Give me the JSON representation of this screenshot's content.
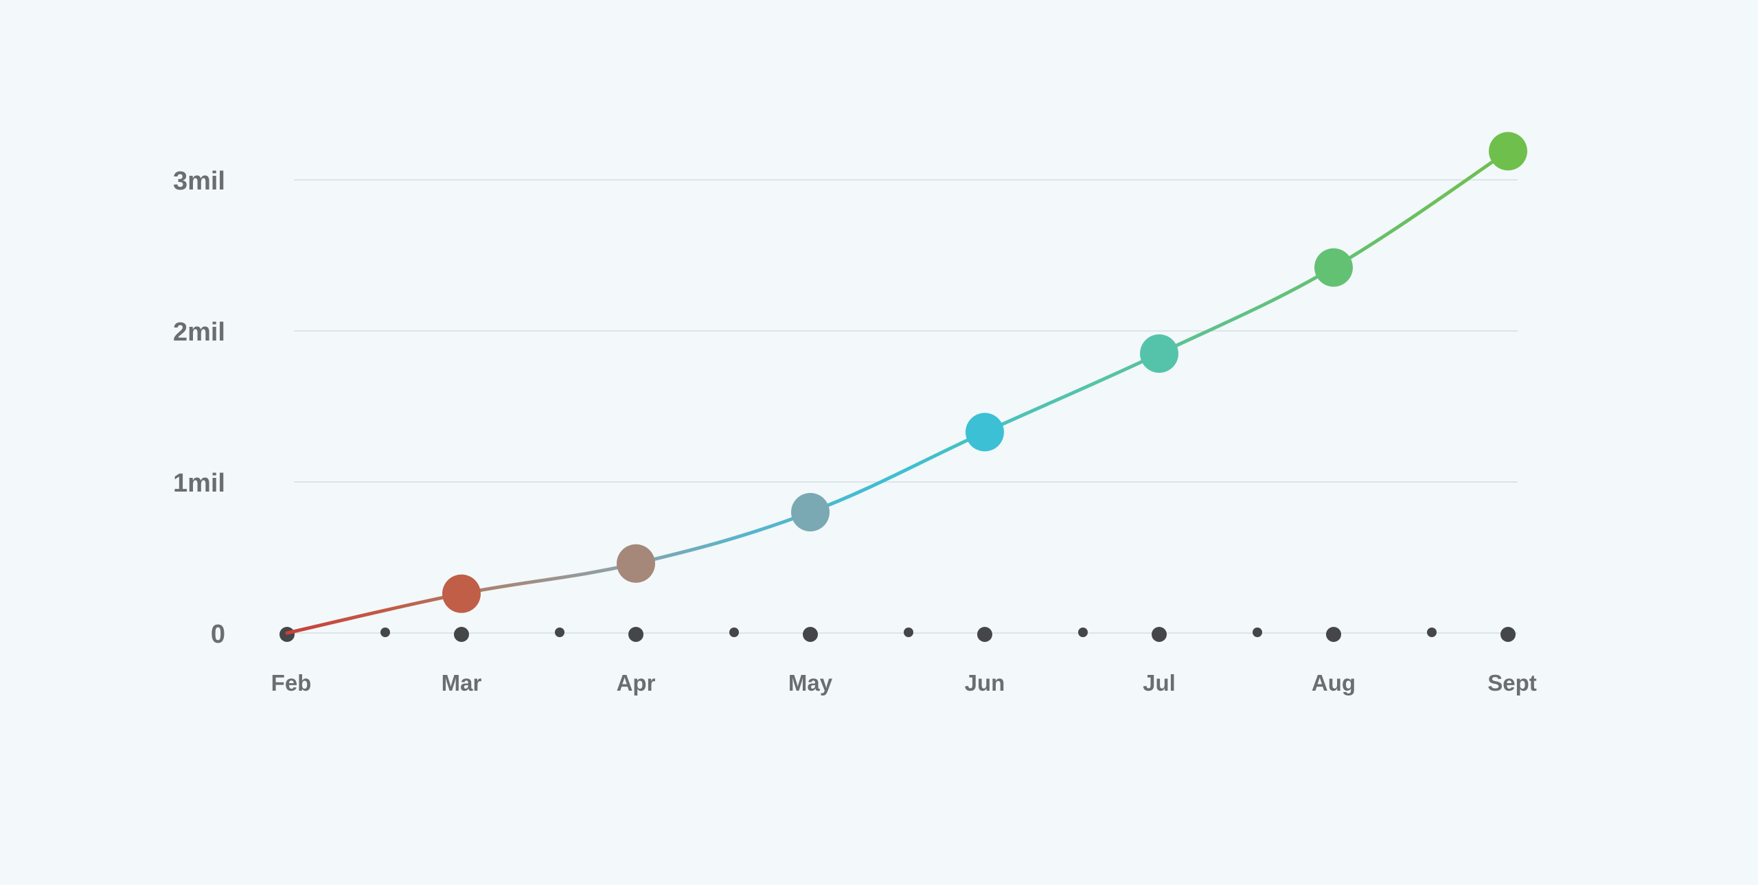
{
  "chart_data": {
    "type": "line",
    "title": "",
    "xlabel": "",
    "ylabel": "",
    "categories": [
      "Feb",
      "Mar",
      "Apr",
      "May",
      "Jun",
      "Jul",
      "Aug",
      "Sept"
    ],
    "series": [
      {
        "values": [
          0,
          260000,
          460000,
          800000,
          1330000,
          1850000,
          2420000,
          3190000
        ]
      }
    ],
    "y_ticks": [
      {
        "value": 0,
        "label": "0"
      },
      {
        "value": 1000000,
        "label": "1mil"
      },
      {
        "value": 2000000,
        "label": "2mil"
      },
      {
        "value": 3000000,
        "label": "3mil"
      }
    ],
    "ylim": [
      0,
      3000000
    ],
    "grid": true,
    "legend": "none",
    "minor_ticks_between_categories": true,
    "point_colors": [
      "#c9403a",
      "#c05e48",
      "#a5887a",
      "#7aa9b3",
      "#3cc0d5",
      "#55c3aa",
      "#63c173",
      "#6fbf4d"
    ],
    "colors": {
      "background": "#f3f8fa",
      "gridline": "#dde4e8",
      "axis_dot": "#454647",
      "label_text": "#6a6d71"
    }
  }
}
